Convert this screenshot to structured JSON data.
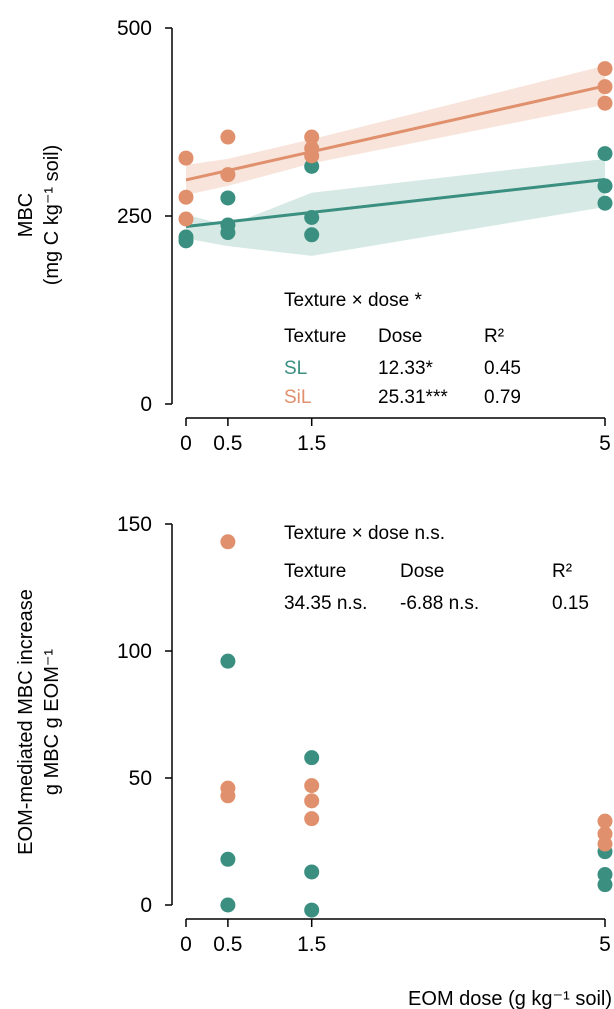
{
  "colors": {
    "SL": "#3a8f80",
    "SiL": "#e0906c",
    "SL_band": "#cfe5df",
    "SiL_band": "#f7dfd3"
  },
  "chart_data": [
    {
      "type": "scatter",
      "ylabel_line1": "MBC",
      "ylabel_line2": "(mg C kg⁻¹ soil)",
      "ylim": [
        0,
        500
      ],
      "yticks": [
        "0",
        "250",
        "500"
      ],
      "xticks": [
        "0",
        "0.5",
        "1.5",
        "5"
      ],
      "xtick_values": [
        0,
        0.5,
        1.5,
        5
      ],
      "xlim": [
        0,
        5
      ],
      "series": [
        {
          "name": "SL",
          "points": [
            [
              0,
              217
            ],
            [
              0,
              222
            ],
            [
              0.5,
              228
            ],
            [
              0.5,
              238
            ],
            [
              0.5,
              274
            ],
            [
              1.5,
              225
            ],
            [
              1.5,
              248
            ],
            [
              1.5,
              316
            ],
            [
              5,
              267
            ],
            [
              5,
              290
            ],
            [
              5,
              333
            ]
          ],
          "fit": {
            "intercept": 236,
            "slope": 12.5,
            "band_lo": [
              220,
              210,
              197,
              262
            ],
            "band_hi": [
              252,
              237,
              281,
              326
            ]
          }
        },
        {
          "name": "SiL",
          "points": [
            [
              0,
              246
            ],
            [
              0,
              275
            ],
            [
              0,
              327
            ],
            [
              0.5,
              305
            ],
            [
              0.5,
              355
            ],
            [
              1.5,
              330
            ],
            [
              1.5,
              340
            ],
            [
              1.5,
              355
            ],
            [
              5,
              400
            ],
            [
              5,
              422
            ],
            [
              5,
              446
            ]
          ],
          "fit": {
            "intercept": 298,
            "slope": 25.0,
            "band_lo": [
              278,
              290,
              320,
              398
            ],
            "band_hi": [
              318,
              326,
              352,
              450
            ]
          }
        }
      ],
      "annotation": {
        "title": "Texture × dose *",
        "headers": [
          "Texture",
          "Dose",
          "R²"
        ],
        "rows": [
          [
            "SL",
            "12.33*",
            "0.45"
          ],
          [
            "SiL",
            "25.31***",
            "0.79"
          ]
        ]
      }
    },
    {
      "type": "scatter",
      "ylabel_line1": "EOM-mediated MBC increase",
      "ylabel_line2": "g MBC g EOM⁻¹",
      "ylim": [
        0,
        150
      ],
      "yticks": [
        "0",
        "50",
        "100",
        "150"
      ],
      "xticks": [
        "0",
        "0.5",
        "1.5",
        "5"
      ],
      "xtick_values": [
        0,
        0.5,
        1.5,
        5
      ],
      "xlim": [
        0,
        5
      ],
      "xlabel": "EOM dose (g kg⁻¹ soil)",
      "series": [
        {
          "name": "SL",
          "points": [
            [
              0.5,
              0
            ],
            [
              0.5,
              18
            ],
            [
              0.5,
              96
            ],
            [
              1.5,
              -2
            ],
            [
              1.5,
              13
            ],
            [
              1.5,
              58
            ],
            [
              5,
              8
            ],
            [
              5,
              12
            ],
            [
              5,
              21
            ]
          ]
        },
        {
          "name": "SiL",
          "points": [
            [
              0.5,
              43
            ],
            [
              0.5,
              46
            ],
            [
              0.5,
              143
            ],
            [
              1.5,
              34
            ],
            [
              1.5,
              41
            ],
            [
              1.5,
              47
            ],
            [
              5,
              24
            ],
            [
              5,
              28
            ],
            [
              5,
              33
            ]
          ]
        }
      ],
      "annotation": {
        "title": "Texture × dose n.s.",
        "headers": [
          "Texture",
          "Dose",
          "R²"
        ],
        "rows": [
          [
            "34.35 n.s.",
            "-6.88 n.s.",
            "0.15"
          ]
        ]
      }
    }
  ]
}
